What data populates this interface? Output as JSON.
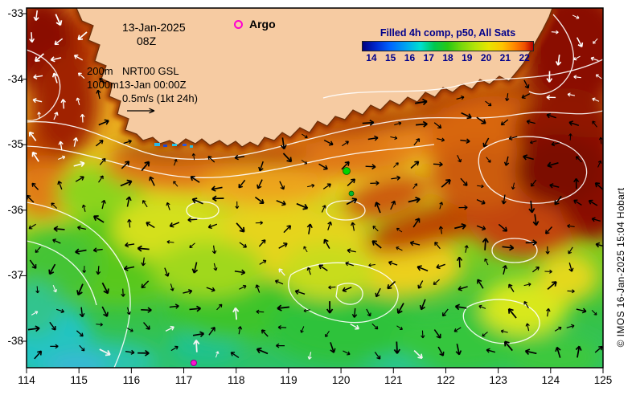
{
  "map": {
    "region": "Southern Australia coastal waters",
    "extent": {
      "lon_min": 114,
      "lon_max": 125,
      "lat_min": -38.4,
      "lat_max": -32.9
    },
    "sst_range_c": [
      14,
      22
    ]
  },
  "header": {
    "date": "13-Jan-2025",
    "time": "08Z"
  },
  "argo": {
    "label": "Argo"
  },
  "info": {
    "depth_top": "200m",
    "model": "NRT00 GSL",
    "depth_bottom": "1000m",
    "timestamp": "13-Jan 00:00Z",
    "scale_label": "0.5m/s (1kt 24h)"
  },
  "legend": {
    "title": "Filled 4h comp, p50, All Sats",
    "ticks": [
      "14",
      "15",
      "16",
      "17",
      "18",
      "19",
      "20",
      "21",
      "22"
    ]
  },
  "axes": {
    "x_ticks": [
      "114",
      "115",
      "116",
      "117",
      "118",
      "119",
      "120",
      "121",
      "122",
      "123",
      "124",
      "125"
    ],
    "y_ticks": [
      "-33",
      "-34",
      "-35",
      "-36",
      "-37",
      "-38"
    ]
  },
  "copyright": "© IMOS 16-Jan-2025 15:04 Hobart"
}
